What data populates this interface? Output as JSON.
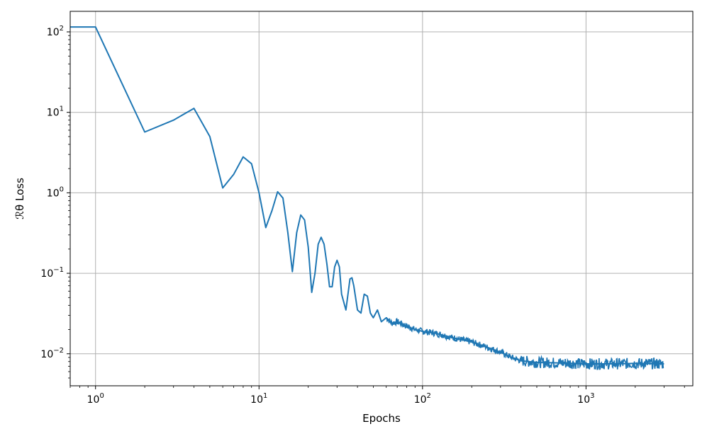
{
  "chart_data": {
    "type": "line",
    "title": "",
    "xlabel": "Epochs",
    "ylabel": "ℛθ Loss",
    "xscale": "log",
    "yscale": "log",
    "xlim": [
      0.7,
      4500
    ],
    "ylim": [
      0.004,
      180
    ],
    "grid": true,
    "legend": "none",
    "x_ticks": [
      {
        "base": "10",
        "exp": "0",
        "value": 1
      },
      {
        "base": "10",
        "exp": "1",
        "value": 10
      },
      {
        "base": "10",
        "exp": "2",
        "value": 100
      },
      {
        "base": "10",
        "exp": "3",
        "value": 1000
      }
    ],
    "y_ticks": [
      {
        "base": "10",
        "exp": "2",
        "value": 100
      },
      {
        "base": "10",
        "exp": "1",
        "value": 10
      },
      {
        "base": "10",
        "exp": "0",
        "value": 1
      },
      {
        "base": "10",
        "exp": "−1",
        "value": 0.1
      },
      {
        "base": "10",
        "exp": "−2",
        "value": 0.01
      }
    ],
    "series": [
      {
        "color": "#1f77b4",
        "x": [
          0.7,
          1,
          2,
          3,
          4,
          5,
          6,
          7,
          8,
          9,
          10,
          11,
          12,
          13,
          14,
          15,
          16,
          17,
          18,
          19,
          20,
          21,
          22,
          23,
          24,
          25,
          26,
          27,
          28,
          29,
          30,
          31,
          32,
          34,
          36,
          37,
          38,
          40,
          42,
          44,
          46,
          48,
          50,
          53,
          56,
          60,
          65,
          70,
          80,
          90,
          100,
          120,
          150,
          200,
          250,
          300,
          350,
          400,
          500,
          700,
          1000,
          1500,
          2000,
          3000
        ],
        "y": [
          115,
          115,
          5.7,
          8.0,
          11.2,
          5.0,
          1.15,
          1.7,
          2.8,
          2.3,
          1.0,
          0.37,
          0.6,
          1.03,
          0.86,
          0.32,
          0.105,
          0.32,
          0.53,
          0.46,
          0.21,
          0.058,
          0.1,
          0.23,
          0.28,
          0.23,
          0.13,
          0.068,
          0.068,
          0.12,
          0.145,
          0.12,
          0.055,
          0.035,
          0.085,
          0.088,
          0.07,
          0.035,
          0.032,
          0.055,
          0.052,
          0.032,
          0.028,
          0.035,
          0.025,
          0.028,
          0.024,
          0.025,
          0.022,
          0.02,
          0.019,
          0.018,
          0.016,
          0.014,
          0.012,
          0.0105,
          0.009,
          0.0082,
          0.0078,
          0.0077,
          0.0075,
          0.0075,
          0.0076,
          0.0075
        ]
      }
    ]
  }
}
